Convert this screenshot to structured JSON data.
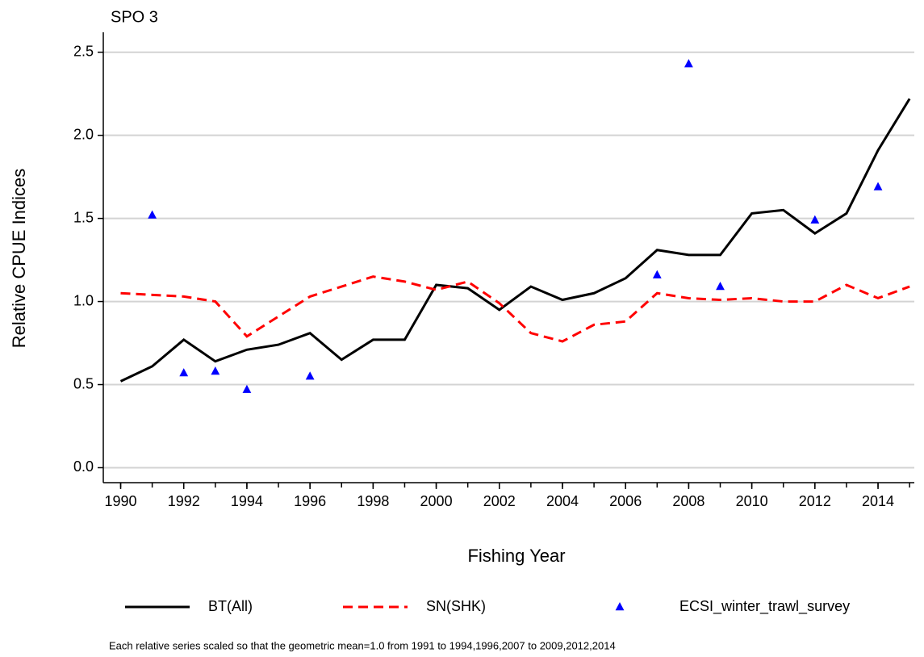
{
  "chart_data": {
    "type": "line",
    "title": "SPO 3",
    "x_label": "Fishing Year",
    "y_label": "Relative CPUE Indices",
    "footnote": "Each relative series scaled so that the geometric mean=1.0 from 1991 to 1994,1996,2007 to 2009,2012,2014",
    "x": [
      1990,
      1991,
      1992,
      1993,
      1994,
      1995,
      1996,
      1997,
      1998,
      1999,
      2000,
      2001,
      2002,
      2003,
      2004,
      2005,
      2006,
      2007,
      2008,
      2009,
      2010,
      2011,
      2012,
      2013,
      2014,
      2015
    ],
    "series": [
      {
        "name": "BT(All)",
        "color": "#000000",
        "type": "line",
        "dash": false,
        "values": [
          0.52,
          0.61,
          0.77,
          0.64,
          0.71,
          0.74,
          0.81,
          0.65,
          0.77,
          0.77,
          1.1,
          1.08,
          0.95,
          1.09,
          1.01,
          1.05,
          1.14,
          1.31,
          1.28,
          1.28,
          1.53,
          1.55,
          1.41,
          1.53,
          1.91,
          2.22
        ]
      },
      {
        "name": "SN(SHK)",
        "color": "#ff0000",
        "type": "line",
        "dash": true,
        "values": [
          1.05,
          1.04,
          1.03,
          1.0,
          0.79,
          0.91,
          1.03,
          1.09,
          1.15,
          1.12,
          1.07,
          1.12,
          0.99,
          0.81,
          0.76,
          0.86,
          0.88,
          1.05,
          1.02,
          1.01,
          1.02,
          1.0,
          1.0,
          1.1,
          1.02,
          1.09
        ]
      },
      {
        "name": "ECSI_winter_trawl_survey",
        "color": "#0000ff",
        "type": "scatter",
        "dash": false,
        "values": [
          null,
          1.52,
          0.57,
          0.58,
          0.47,
          null,
          0.55,
          null,
          null,
          null,
          null,
          null,
          null,
          null,
          null,
          null,
          null,
          1.16,
          2.43,
          1.09,
          null,
          null,
          1.49,
          null,
          1.69,
          null
        ]
      }
    ],
    "xlim": [
      1989.45,
      2015.15
    ],
    "xticks": [
      1990,
      1992,
      1994,
      1996,
      1998,
      2000,
      2002,
      2004,
      2006,
      2008,
      2010,
      2012,
      2014
    ],
    "ylim": [
      -0.09,
      2.62
    ],
    "yticks": [
      {
        "value": 0,
        "label": "0.0"
      },
      0.5,
      {
        "value": 1,
        "label": "1.0"
      },
      1.5,
      {
        "value": 2,
        "label": "2.0"
      },
      2.5
    ],
    "grid": true
  }
}
